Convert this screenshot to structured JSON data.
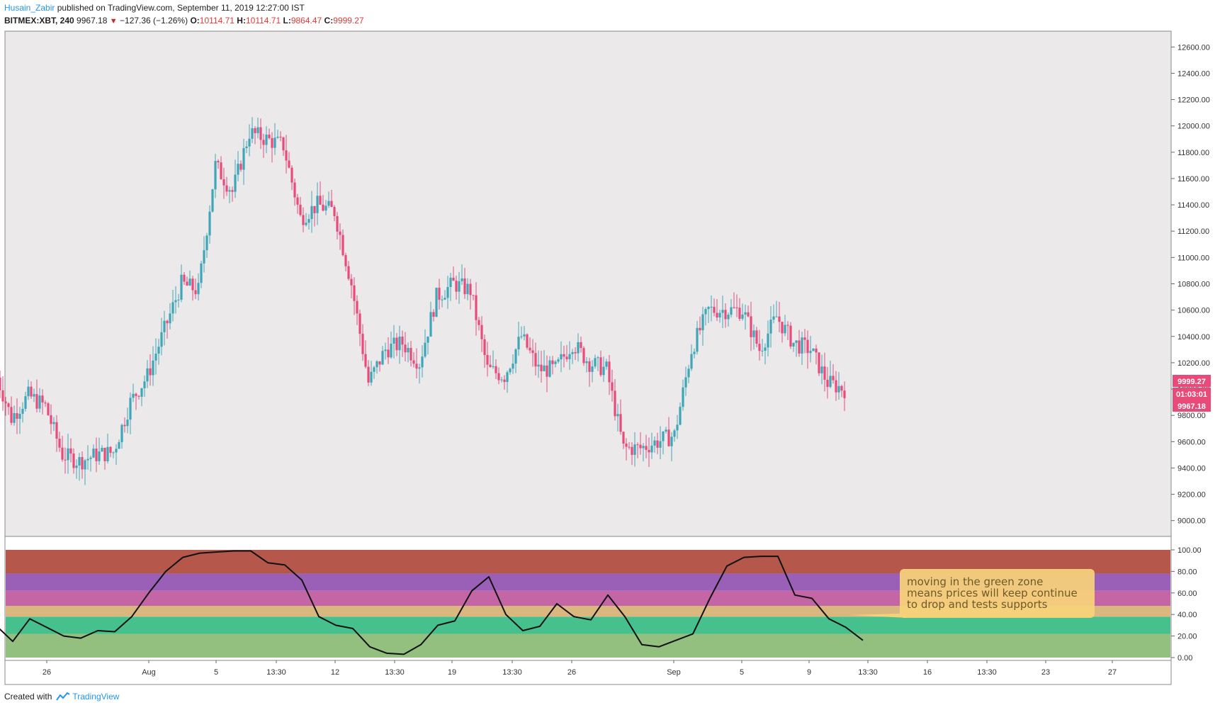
{
  "header": {
    "author": "Husain_Zabir",
    "published": "published on TradingView.com, September 11, 2019 12:27:00 IST",
    "symbol": "BITMEX:XBT, 240",
    "last": "9967.18",
    "change": "−127.36 (−1.26%)",
    "open_label": "O:",
    "open": "10114.71",
    "high_label": "H:",
    "high": "10114.71",
    "low_label": "L:",
    "low": "9864.47",
    "close_label": "C:",
    "close": "9999.27"
  },
  "footer": {
    "created_with": "Created with",
    "brand": "TradingView"
  },
  "colors": {
    "up": "#3fa6b8",
    "down": "#e84a7a",
    "oscillator_line": "#111111",
    "price_tag": "#e84a7a"
  },
  "chart_data": [
    {
      "type": "candlestick",
      "title": "BITMEX:XBT, 240",
      "ylim": [
        8880,
        12720
      ],
      "y_ticks": [
        "9000.00",
        "9200.00",
        "9400.00",
        "9600.00",
        "9800.00",
        "10000.00",
        "10200.00",
        "10400.00",
        "10600.00",
        "10800.00",
        "11000.00",
        "11200.00",
        "11400.00",
        "11600.00",
        "11800.00",
        "12000.00",
        "12200.00",
        "12400.00",
        "12600.00"
      ],
      "x_tick_labels": [
        "26",
        "Aug",
        "5",
        "13:30",
        "12",
        "13:30",
        "19",
        "13:30",
        "26",
        "Sep",
        "5",
        "9",
        "13:30",
        "16",
        "13:30",
        "23",
        "27"
      ],
      "price_tags": [
        "9999.27",
        "01:03:01",
        "9967.18"
      ],
      "close_path_approx": [
        {
          "date": "Jul 23",
          "close": 10150
        },
        {
          "date": "Jul 24",
          "close": 9780
        },
        {
          "date": "Jul 25",
          "close": 9950
        },
        {
          "date": "Jul 26",
          "close": 9870
        },
        {
          "date": "Jul 27",
          "close": 9500
        },
        {
          "date": "Jul 28",
          "close": 9450
        },
        {
          "date": "Jul 29",
          "close": 9500
        },
        {
          "date": "Jul 30",
          "close": 9520
        },
        {
          "date": "Jul 31",
          "close": 9900
        },
        {
          "date": "Aug 1",
          "close": 10100
        },
        {
          "date": "Aug 2",
          "close": 10450
        },
        {
          "date": "Aug 3",
          "close": 10800
        },
        {
          "date": "Aug 4",
          "close": 10750
        },
        {
          "date": "Aug 5",
          "close": 11700
        },
        {
          "date": "Aug 6",
          "close": 11500
        },
        {
          "date": "Aug 7",
          "close": 11950
        },
        {
          "date": "Aug 8",
          "close": 11900
        },
        {
          "date": "Aug 9",
          "close": 11850
        },
        {
          "date": "Aug 10",
          "close": 11300
        },
        {
          "date": "Aug 11",
          "close": 11400
        },
        {
          "date": "Aug 12",
          "close": 11350
        },
        {
          "date": "Aug 13",
          "close": 10800
        },
        {
          "date": "Aug 14",
          "close": 10050
        },
        {
          "date": "Aug 15",
          "close": 10300
        },
        {
          "date": "Aug 16",
          "close": 10350
        },
        {
          "date": "Aug 17",
          "close": 10200
        },
        {
          "date": "Aug 18",
          "close": 10700
        },
        {
          "date": "Aug 19",
          "close": 10800
        },
        {
          "date": "Aug 20",
          "close": 10750
        },
        {
          "date": "Aug 21",
          "close": 10150
        },
        {
          "date": "Aug 22",
          "close": 10100
        },
        {
          "date": "Aug 23",
          "close": 10400
        },
        {
          "date": "Aug 24",
          "close": 10150
        },
        {
          "date": "Aug 25",
          "close": 10150
        },
        {
          "date": "Aug 26",
          "close": 10350
        },
        {
          "date": "Aug 27",
          "close": 10200
        },
        {
          "date": "Aug 28",
          "close": 10150
        },
        {
          "date": "Aug 29",
          "close": 9550
        },
        {
          "date": "Aug 30",
          "close": 9550
        },
        {
          "date": "Aug 31",
          "close": 9600
        },
        {
          "date": "Sep 1",
          "close": 9650
        },
        {
          "date": "Sep 2",
          "close": 10300
        },
        {
          "date": "Sep 3",
          "close": 10600
        },
        {
          "date": "Sep 4",
          "close": 10600
        },
        {
          "date": "Sep 5",
          "close": 10600
        },
        {
          "date": "Sep 6",
          "close": 10300
        },
        {
          "date": "Sep 7",
          "close": 10550
        },
        {
          "date": "Sep 8",
          "close": 10350
        },
        {
          "date": "Sep 9",
          "close": 10300
        },
        {
          "date": "Sep 10",
          "close": 10050
        },
        {
          "date": "Sep 11",
          "close": 9999
        }
      ]
    },
    {
      "type": "line",
      "ylim": [
        0,
        100
      ],
      "y_ticks": [
        "0.00",
        "20.00",
        "40.00",
        "60.00",
        "80.00",
        "100.00"
      ],
      "zones": [
        {
          "from": 0,
          "to": 22,
          "color": "#93bf7f"
        },
        {
          "from": 22,
          "to": 38,
          "color": "#46c08c"
        },
        {
          "from": 38,
          "to": 48,
          "color": "#d9b77e"
        },
        {
          "from": 48,
          "to": 62,
          "color": "#c466a6"
        },
        {
          "from": 62,
          "to": 78,
          "color": "#9a5fb6"
        },
        {
          "from": 78,
          "to": 100,
          "color": "#b5574a"
        }
      ],
      "points": [
        {
          "date": "Jul 23",
          "value": 30
        },
        {
          "date": "Jul 24",
          "value": 15
        },
        {
          "date": "Jul 25",
          "value": 36
        },
        {
          "date": "Jul 26",
          "value": 28
        },
        {
          "date": "Jul 27",
          "value": 20
        },
        {
          "date": "Jul 28",
          "value": 18
        },
        {
          "date": "Jul 29",
          "value": 25
        },
        {
          "date": "Jul 30",
          "value": 24
        },
        {
          "date": "Jul 31",
          "value": 38
        },
        {
          "date": "Aug 1",
          "value": 60
        },
        {
          "date": "Aug 2",
          "value": 80
        },
        {
          "date": "Aug 3",
          "value": 93
        },
        {
          "date": "Aug 4",
          "value": 97
        },
        {
          "date": "Aug 5",
          "value": 98
        },
        {
          "date": "Aug 6",
          "value": 99
        },
        {
          "date": "Aug 7",
          "value": 99
        },
        {
          "date": "Aug 8",
          "value": 88
        },
        {
          "date": "Aug 9",
          "value": 86
        },
        {
          "date": "Aug 10",
          "value": 72
        },
        {
          "date": "Aug 11",
          "value": 38
        },
        {
          "date": "Aug 12",
          "value": 30
        },
        {
          "date": "Aug 13",
          "value": 27
        },
        {
          "date": "Aug 14",
          "value": 10
        },
        {
          "date": "Aug 15",
          "value": 4
        },
        {
          "date": "Aug 16",
          "value": 3
        },
        {
          "date": "Aug 17",
          "value": 12
        },
        {
          "date": "Aug 18",
          "value": 30
        },
        {
          "date": "Aug 19",
          "value": 34
        },
        {
          "date": "Aug 20",
          "value": 62
        },
        {
          "date": "Aug 21",
          "value": 75
        },
        {
          "date": "Aug 22",
          "value": 40
        },
        {
          "date": "Aug 23",
          "value": 25
        },
        {
          "date": "Aug 24",
          "value": 29
        },
        {
          "date": "Aug 25",
          "value": 50
        },
        {
          "date": "Aug 26",
          "value": 38
        },
        {
          "date": "Aug 27",
          "value": 35
        },
        {
          "date": "Aug 28",
          "value": 58
        },
        {
          "date": "Aug 29",
          "value": 38
        },
        {
          "date": "Aug 30",
          "value": 12
        },
        {
          "date": "Aug 31",
          "value": 10
        },
        {
          "date": "Sep 1",
          "value": 16
        },
        {
          "date": "Sep 2",
          "value": 22
        },
        {
          "date": "Sep 3",
          "value": 55
        },
        {
          "date": "Sep 4",
          "value": 85
        },
        {
          "date": "Sep 5",
          "value": 93
        },
        {
          "date": "Sep 6",
          "value": 94
        },
        {
          "date": "Sep 7",
          "value": 94
        },
        {
          "date": "Sep 8",
          "value": 58
        },
        {
          "date": "Sep 9",
          "value": 55
        },
        {
          "date": "Sep 10",
          "value": 36
        },
        {
          "date": "Sep 11",
          "value": 28
        },
        {
          "date": "Sep 12",
          "value": 16
        }
      ],
      "annotation_lines": [
        "moving in the green zone",
        "means prices will keep continue",
        "to drop and tests supports"
      ]
    }
  ]
}
